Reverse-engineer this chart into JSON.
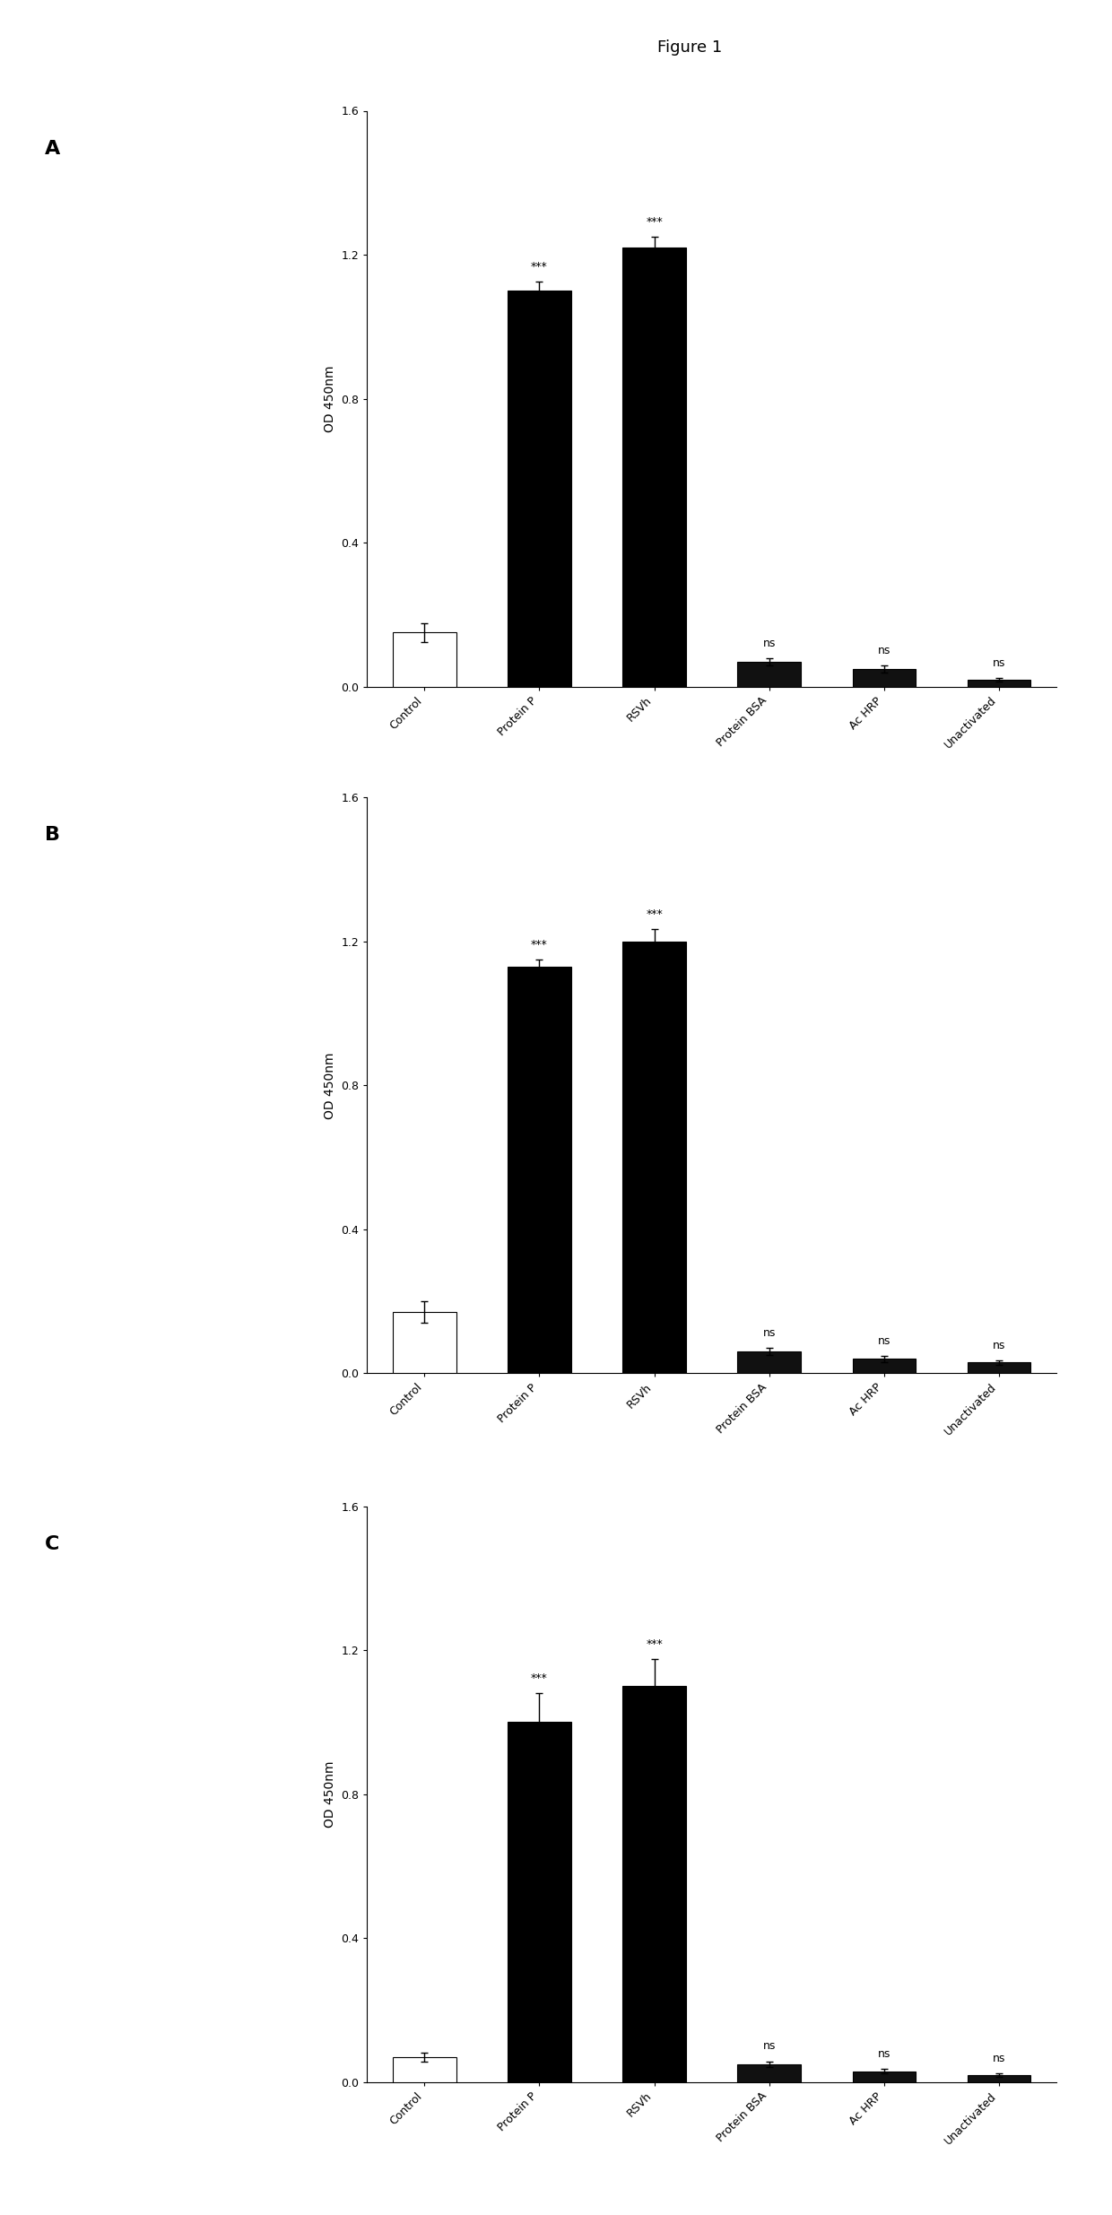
{
  "figure_title": "Figure 1",
  "panels": [
    "A",
    "B",
    "C"
  ],
  "categories": [
    "Control",
    "Protein P",
    "RSVh",
    "Protein BSA",
    "Ac HRP",
    "Unactivated"
  ],
  "ylabel": "OD 450nm",
  "ylim": [
    0.0,
    1.6
  ],
  "yticks": [
    0.0,
    0.4,
    0.8,
    1.2,
    1.6
  ],
  "bar_colors": [
    "white",
    "black",
    "black",
    "#111111",
    "#111111",
    "#111111"
  ],
  "bar_edgecolors": [
    "black",
    "black",
    "black",
    "black",
    "black",
    "black"
  ],
  "panel_A": {
    "values": [
      0.15,
      1.1,
      1.22,
      0.07,
      0.05,
      0.02
    ],
    "errors": [
      0.025,
      0.025,
      0.03,
      0.01,
      0.01,
      0.005
    ],
    "significance": [
      "",
      "***",
      "***",
      "ns",
      "ns",
      "ns"
    ]
  },
  "panel_B": {
    "values": [
      0.17,
      1.13,
      1.2,
      0.06,
      0.04,
      0.03
    ],
    "errors": [
      0.03,
      0.02,
      0.035,
      0.01,
      0.008,
      0.007
    ],
    "significance": [
      "",
      "***",
      "***",
      "ns",
      "ns",
      "ns"
    ]
  },
  "panel_C": {
    "values": [
      0.07,
      1.0,
      1.1,
      0.05,
      0.03,
      0.02
    ],
    "errors": [
      0.012,
      0.08,
      0.075,
      0.008,
      0.006,
      0.005
    ],
    "significance": [
      "",
      "***",
      "***",
      "ns",
      "ns",
      "ns"
    ]
  },
  "bar_width": 0.55,
  "sig_fontsize": 9,
  "label_fontsize": 9,
  "tick_fontsize": 9,
  "ylabel_fontsize": 10,
  "panel_label_fontsize": 16,
  "title_fontsize": 13
}
